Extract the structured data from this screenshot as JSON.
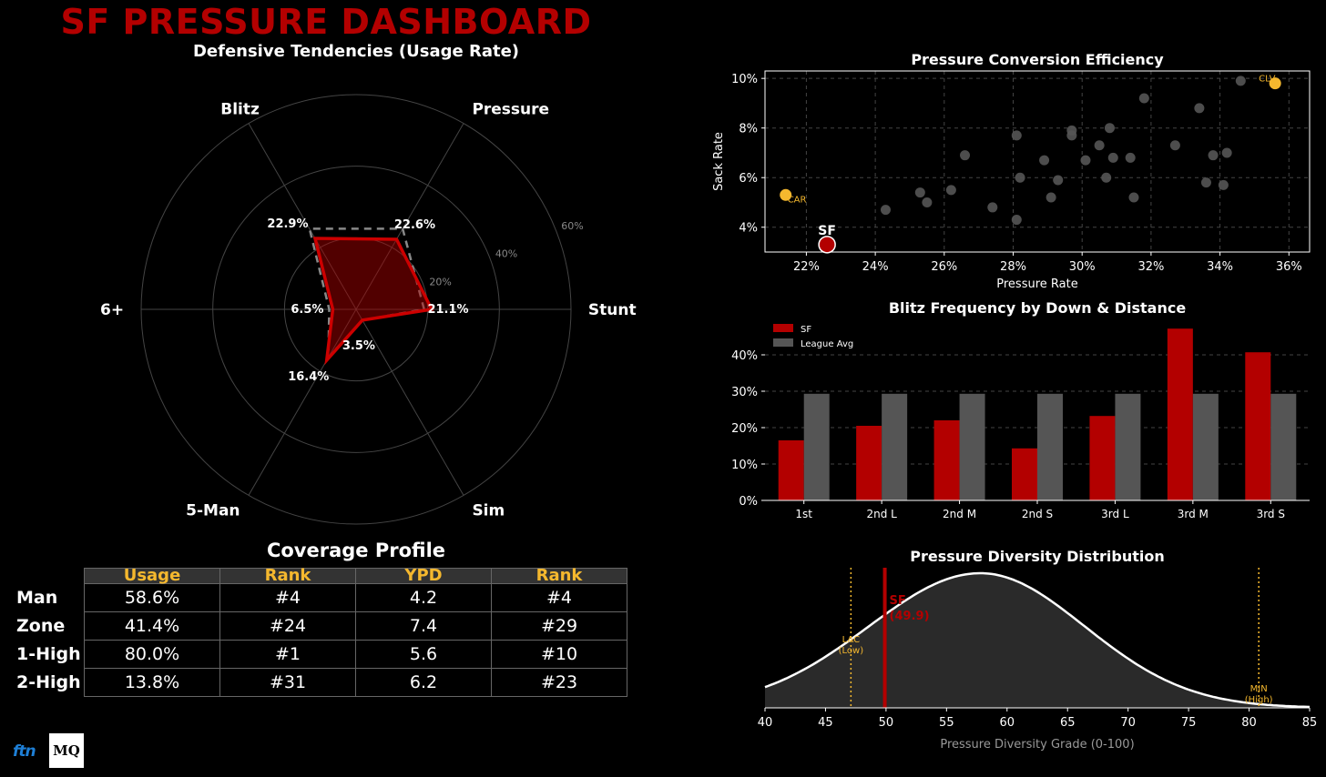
{
  "dashboard": {
    "title": "SF PRESSURE DASHBOARD"
  },
  "colors": {
    "sf_red": "#b30000",
    "league_gray": "#555555",
    "accent_gold": "#f5b82e",
    "background": "#000000"
  },
  "chart_data": [
    {
      "id": "radar",
      "type": "radar",
      "title": "Defensive Tendencies (Usage Rate)",
      "categories": [
        "Stunt",
        "Pressure",
        "Blitz",
        "6+",
        "5-Man",
        "Sim"
      ],
      "series": [
        {
          "name": "SF",
          "values": [
            21.1,
            22.6,
            22.9,
            6.5,
            16.4,
            3.5
          ]
        }
      ],
      "league_avg_values": [
        19,
        26,
        26,
        7.5,
        15.5,
        3.5
      ],
      "value_labels": [
        "21.1%",
        "22.6%",
        "22.9%",
        "6.5%",
        "16.4%",
        "3.5%"
      ],
      "radial_ticks": [
        "20%",
        "40%",
        "60%"
      ],
      "rlim": [
        0,
        60
      ]
    },
    {
      "id": "scatter",
      "type": "scatter",
      "title": "Pressure Conversion Efficiency",
      "xlabel": "Pressure Rate",
      "ylabel": "Sack Rate",
      "xlim": [
        20.8,
        36.6
      ],
      "ylim": [
        3.0,
        10.3
      ],
      "xticks": [
        "22%",
        "24%",
        "26%",
        "28%",
        "30%",
        "32%",
        "34%",
        "36%"
      ],
      "yticks": [
        "4%",
        "6%",
        "8%",
        "10%"
      ],
      "grid": true,
      "points": [
        [
          24.3,
          4.7
        ],
        [
          25.3,
          5.4
        ],
        [
          25.5,
          5.0
        ],
        [
          26.2,
          5.5
        ],
        [
          26.6,
          6.9
        ],
        [
          27.4,
          4.8
        ],
        [
          28.1,
          7.7
        ],
        [
          28.2,
          6.0
        ],
        [
          28.1,
          4.3
        ],
        [
          28.9,
          6.7
        ],
        [
          29.1,
          5.2
        ],
        [
          29.3,
          5.9
        ],
        [
          29.7,
          7.9
        ],
        [
          29.7,
          7.7
        ],
        [
          30.1,
          6.7
        ],
        [
          30.5,
          7.3
        ],
        [
          30.8,
          8.0
        ],
        [
          30.7,
          6.0
        ],
        [
          30.9,
          6.8
        ],
        [
          31.4,
          6.8
        ],
        [
          31.5,
          5.2
        ],
        [
          31.8,
          9.2
        ],
        [
          32.7,
          7.3
        ],
        [
          33.4,
          8.8
        ],
        [
          33.6,
          5.8
        ],
        [
          33.8,
          6.9
        ],
        [
          34.1,
          5.7
        ],
        [
          34.2,
          7.0
        ],
        [
          34.6,
          9.9
        ]
      ],
      "highlights": [
        {
          "name": "SF",
          "x": 22.6,
          "y": 3.3,
          "color": "#b30000"
        },
        {
          "name": "CAR",
          "x": 21.4,
          "y": 5.3,
          "color": "#f5b82e"
        },
        {
          "name": "CLV",
          "x": 35.6,
          "y": 9.8,
          "color": "#f5b82e"
        }
      ]
    },
    {
      "id": "bars",
      "type": "bar",
      "title": "Blitz Frequency by Down & Distance",
      "categories": [
        "1st",
        "2nd L",
        "2nd M",
        "2nd S",
        "3rd L",
        "3rd M",
        "3rd S"
      ],
      "series": [
        {
          "name": "SF",
          "values": [
            16.5,
            20.5,
            22,
            14.3,
            23.2,
            47.2,
            40.7
          ],
          "color": "#b30000"
        },
        {
          "name": "League Avg",
          "values": [
            29.3,
            29.3,
            29.3,
            29.3,
            29.3,
            29.3,
            29.3
          ],
          "color": "#555555"
        }
      ],
      "yticks": [
        "0%",
        "10%",
        "20%",
        "30%",
        "40%"
      ],
      "ylim": [
        0,
        48
      ],
      "legend": "top-left",
      "grid": true
    },
    {
      "id": "density",
      "type": "area",
      "title": "Pressure Diversity Distribution",
      "xlabel": "Pressure Diversity Grade (0-100)",
      "xlim": [
        40,
        85
      ],
      "xticks": [
        "40",
        "45",
        "50",
        "55",
        "60",
        "65",
        "70",
        "75",
        "80",
        "85"
      ],
      "distribution": {
        "mean": 57.8,
        "sd_left": 9.2,
        "sd_right": 8.6
      },
      "markers": [
        {
          "x": 49.9,
          "label": "SF",
          "value_label": "(49.9)",
          "color": "#b30000"
        },
        {
          "x": 47.1,
          "label": "LAC",
          "value_label": "(Low)",
          "color": "#f5b82e"
        },
        {
          "x": 80.8,
          "label": "MIN",
          "value_label": "(High)",
          "color": "#f5b82e"
        }
      ]
    }
  ],
  "coverage": {
    "title": "Coverage Profile",
    "headers": [
      "Usage",
      "Rank",
      "YPD",
      "Rank"
    ],
    "rows": [
      {
        "label": "Man",
        "cells": [
          "58.6%",
          "#4",
          "4.2",
          "#4"
        ]
      },
      {
        "label": "Zone",
        "cells": [
          "41.4%",
          "#24",
          "7.4",
          "#29"
        ]
      },
      {
        "label": "1-High",
        "cells": [
          "80.0%",
          "#1",
          "5.6",
          "#10"
        ]
      },
      {
        "label": "2-High",
        "cells": [
          "13.8%",
          "#31",
          "6.2",
          "#23"
        ]
      }
    ]
  },
  "logos": {
    "ftn": "ftn",
    "mq": "MQ"
  }
}
